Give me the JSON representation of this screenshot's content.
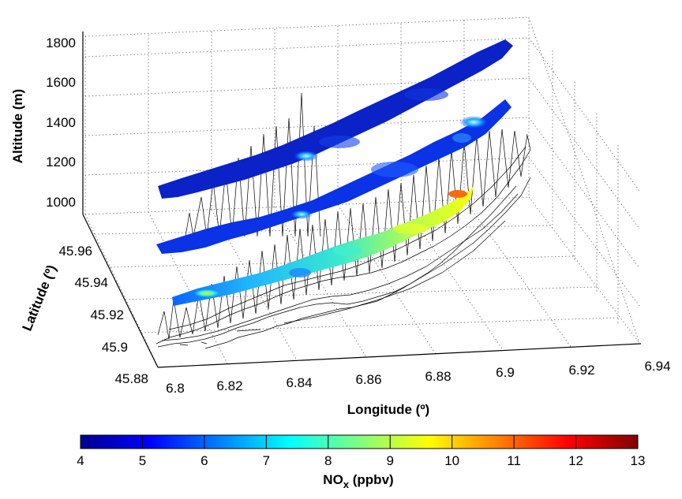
{
  "chart_data": {
    "type": "surface3d",
    "xlabel": "Longitude (º)",
    "ylabel": "Latitude (º)",
    "zlabel": "Altitude (m)",
    "x_ticks": [
      "6.8",
      "6.82",
      "6.84",
      "6.86",
      "6.88",
      "6.9",
      "6.92",
      "6.94"
    ],
    "y_ticks": [
      "45.88",
      "45.9",
      "45.92",
      "45.94",
      "45.96"
    ],
    "z_ticks": [
      "1000",
      "1200",
      "1400",
      "1600",
      "1800"
    ],
    "xlim": [
      6.8,
      6.94
    ],
    "ylim": [
      45.88,
      45.97
    ],
    "zlim": [
      900,
      1850
    ],
    "grid": true,
    "surfaces": [
      {
        "kind": "terrain-mesh",
        "color": "#000000"
      },
      {
        "kind": "colored-slice",
        "altitude": 1050,
        "color_range": [
          4,
          11
        ]
      },
      {
        "kind": "colored-slice",
        "altitude": 1400,
        "color_range": [
          4,
          7
        ]
      },
      {
        "kind": "colored-slice",
        "altitude": 1700,
        "color_range": [
          4,
          6
        ]
      }
    ],
    "colorbar": {
      "label_main": "NO",
      "label_sub": "x",
      "label_unit": " (ppbv)",
      "ticks": [
        "4",
        "5",
        "6",
        "7",
        "8",
        "9",
        "10",
        "11",
        "12",
        "13"
      ],
      "range": [
        4,
        13
      ],
      "colormap": "jet",
      "position": "bottom"
    }
  }
}
